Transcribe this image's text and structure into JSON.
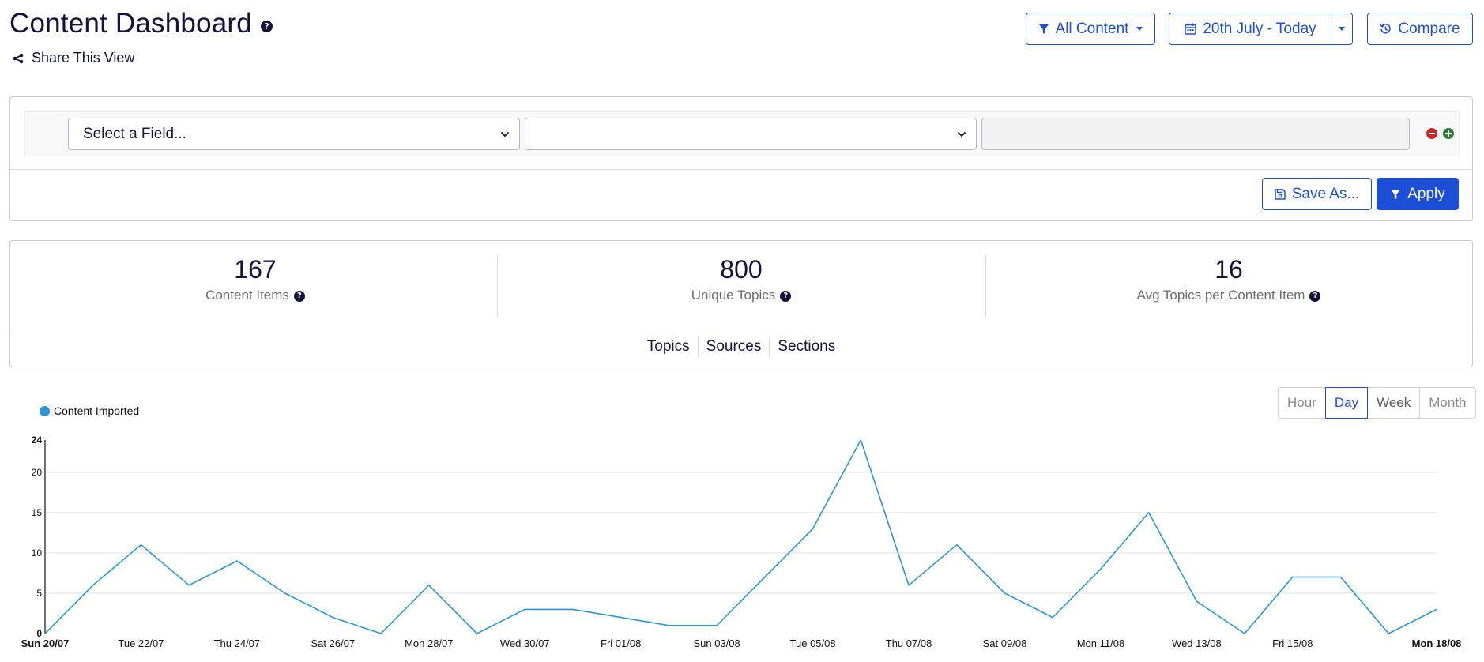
{
  "header": {
    "title": "Content Dashboard",
    "share_label": "Share This View",
    "filter_button": "All Content",
    "date_button": "20th July - Today",
    "compare_button": "Compare"
  },
  "filters": {
    "field_select": "Select a Field...",
    "operator_select": "",
    "value_input": "",
    "save_button": "Save As...",
    "apply_button": "Apply"
  },
  "stats": [
    {
      "value": "167",
      "label": "Content Items"
    },
    {
      "value": "800",
      "label": "Unique Topics"
    },
    {
      "value": "16",
      "label": "Avg Topics per Content Item"
    }
  ],
  "tabs": [
    "Topics",
    "Sources",
    "Sections"
  ],
  "range": {
    "options": [
      "Hour",
      "Day",
      "Week",
      "Month"
    ],
    "selected": "Day"
  },
  "colors": {
    "accent": "#1d4ed8",
    "series": "#2b95d6",
    "remove": "#c62828",
    "add": "#2e7d32"
  },
  "chart_data": {
    "type": "line",
    "x": [
      "Sun 20/07",
      "Mon 21/07",
      "Tue 22/07",
      "Wed 23/07",
      "Thu 24/07",
      "Fri 25/07",
      "Sat 26/07",
      "Sun 27/07",
      "Mon 28/07",
      "Tue 29/07",
      "Wed 30/07",
      "Thu 31/07",
      "Fri 01/08",
      "Sat 02/08",
      "Sun 03/08",
      "Mon 04/08",
      "Tue 05/08",
      "Wed 06/08",
      "Thu 07/08",
      "Fri 08/08",
      "Sat 09/08",
      "Sun 10/08",
      "Mon 11/08",
      "Tue 12/08",
      "Wed 13/08",
      "Thu 14/08",
      "Fri 15/08",
      "Sat 16/08",
      "Sun 17/08",
      "Mon 18/08"
    ],
    "tick_labels": [
      "Sun 20/07",
      "Tue 22/07",
      "Thu 24/07",
      "Sat 26/07",
      "Mon 28/07",
      "Wed 30/07",
      "Fri 01/08",
      "Sun 03/08",
      "Tue 05/08",
      "Thu 07/08",
      "Sat 09/08",
      "Mon 11/08",
      "Wed 13/08",
      "Fri 15/08",
      "Mon 18/08"
    ],
    "series": [
      {
        "name": "Content Imported",
        "values": [
          0,
          6,
          11,
          6,
          9,
          5,
          2,
          0,
          6,
          0,
          3,
          3,
          2,
          1,
          1,
          7,
          13,
          24,
          6,
          11,
          5,
          2,
          8,
          15,
          4,
          0,
          7,
          7,
          0,
          3
        ]
      }
    ],
    "ylim": [
      0,
      24
    ],
    "yticks": [
      0,
      5,
      10,
      15,
      20,
      24
    ],
    "grid": true,
    "legend_position": "top-left"
  }
}
